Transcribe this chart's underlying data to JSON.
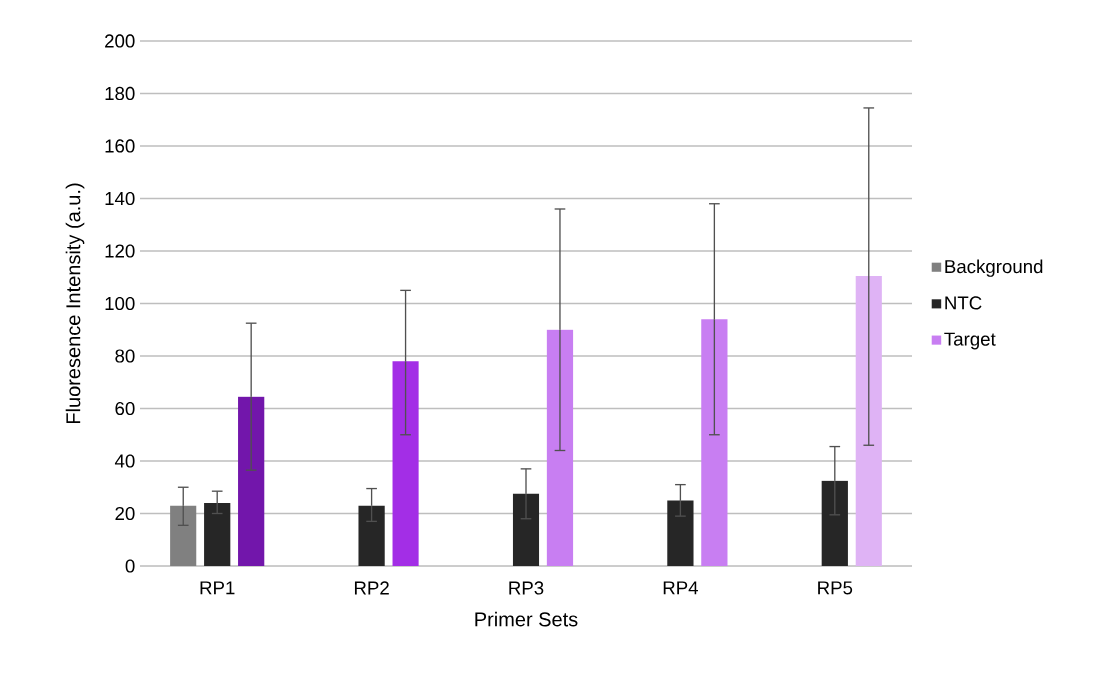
{
  "chart_data": {
    "type": "bar",
    "xlabel": "Primer Sets",
    "ylabel": "Fluoresence Intensity (a.u.)",
    "categories": [
      "RP1",
      "RP2",
      "RP3",
      "RP4",
      "RP5"
    ],
    "series": [
      {
        "name": "Background",
        "color": "#808080",
        "values": [
          23,
          null,
          null,
          null,
          null
        ],
        "errors": [
          [
            15.5,
            30
          ],
          null,
          null,
          null,
          null
        ]
      },
      {
        "name": "NTC",
        "color": "#262626",
        "values": [
          24,
          23,
          27.5,
          25,
          32.5
        ],
        "errors": [
          [
            20,
            28.5
          ],
          [
            17,
            29.5
          ],
          [
            18,
            37
          ],
          [
            19,
            31
          ],
          [
            19.5,
            45.5
          ]
        ]
      },
      {
        "name": "Target",
        "color": "#c87ef2",
        "colors": [
          "#7216ab",
          "#a32ee6",
          "#c87ef2",
          "#c87ef2",
          "#dfb3f5"
        ],
        "values": [
          64.5,
          78,
          90,
          94,
          110.5
        ],
        "errors": [
          [
            36.5,
            92.5
          ],
          [
            50,
            105
          ],
          [
            44,
            136
          ],
          [
            50,
            138
          ],
          [
            46,
            174.5
          ]
        ]
      }
    ],
    "ylim": [
      0,
      200
    ],
    "yticks": [
      0,
      20,
      40,
      60,
      80,
      100,
      120,
      140,
      160,
      180,
      200
    ],
    "grid": "y",
    "legend": "right"
  }
}
